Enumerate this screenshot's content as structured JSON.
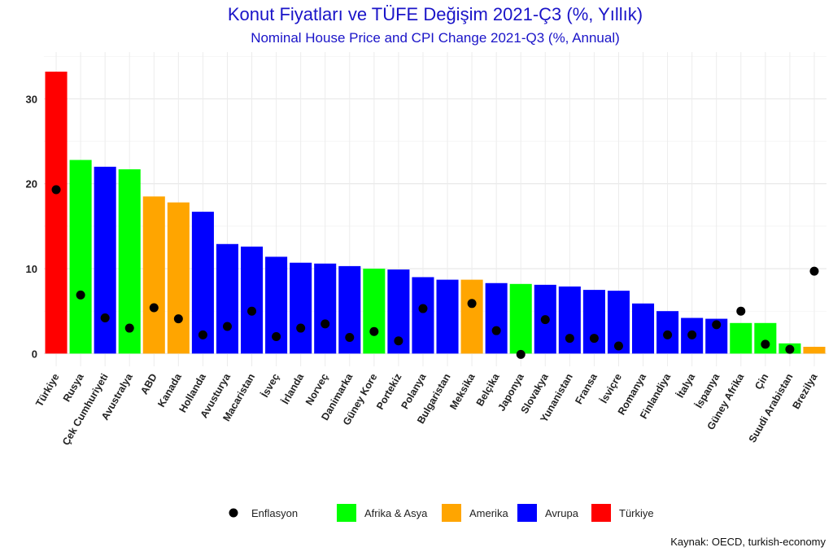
{
  "title": "Konut Fiyatları ve TÜFE Değişim 2021-Ç3 (%, Yıllık)",
  "subtitle": "Nominal House Price and CPI Change 2021-Q3 (%, Annual)",
  "source": "Kaynak: OECD, turkish-economy",
  "colors": {
    "Afrika & Asya": "#00ff00",
    "Amerika": "#ffa500",
    "Avrupa": "#0000ff",
    "Türkiye": "#ff0000",
    "inflation": "#000000"
  },
  "chart_data": {
    "type": "bar",
    "title": "Konut Fiyatları ve TÜFE Değişim 2021-Ç3 (%, Yıllık)",
    "xlabel": "",
    "ylabel": "",
    "ylim": [
      -1.5,
      35.5
    ],
    "yticks": [
      0,
      10,
      20,
      30
    ],
    "grid": true,
    "legend_position": "bottom",
    "categories": [
      "Türkiye",
      "Rusya",
      "Çek Cumhuriyeti",
      "Avustralya",
      "ABD",
      "Kanada",
      "Hollanda",
      "Avusturya",
      "Macaristan",
      "İsveç",
      "İrlanda",
      "Norveç",
      "Danimarka",
      "Güney Kore",
      "Portekiz",
      "Polanya",
      "Bulgaristan",
      "Meksika",
      "Belçika",
      "Japonya",
      "Slovakya",
      "Yunanistan",
      "Fransa",
      "İsviçre",
      "Romanya",
      "Finlandiya",
      "İtalya",
      "İspanya",
      "Güney Afrika",
      "Çin",
      "Suudi Arabistan",
      "Brezilya"
    ],
    "groups": [
      "Türkiye",
      "Afrika & Asya",
      "Avrupa",
      "Afrika & Asya",
      "Amerika",
      "Amerika",
      "Avrupa",
      "Avrupa",
      "Avrupa",
      "Avrupa",
      "Avrupa",
      "Avrupa",
      "Avrupa",
      "Afrika & Asya",
      "Avrupa",
      "Avrupa",
      "Avrupa",
      "Amerika",
      "Avrupa",
      "Afrika & Asya",
      "Avrupa",
      "Avrupa",
      "Avrupa",
      "Avrupa",
      "Avrupa",
      "Avrupa",
      "Avrupa",
      "Avrupa",
      "Afrika & Asya",
      "Afrika & Asya",
      "Afrika & Asya",
      "Amerika"
    ],
    "series": [
      {
        "name": "Konut Fiyatları",
        "type": "bar",
        "values": [
          33.2,
          22.8,
          22.0,
          21.7,
          18.5,
          17.8,
          16.7,
          12.9,
          12.6,
          11.4,
          10.7,
          10.6,
          10.3,
          10.0,
          9.9,
          9.0,
          8.7,
          8.7,
          8.3,
          8.2,
          8.1,
          7.9,
          7.5,
          7.4,
          5.9,
          5.0,
          4.2,
          4.1,
          3.6,
          3.6,
          1.2,
          0.8
        ]
      },
      {
        "name": "Enflasyon",
        "type": "scatter",
        "values": [
          19.3,
          6.9,
          4.2,
          3.0,
          5.4,
          4.1,
          2.2,
          3.2,
          5.0,
          2.0,
          3.0,
          3.5,
          1.9,
          2.6,
          1.5,
          5.3,
          null,
          5.9,
          2.7,
          -0.1,
          4.0,
          1.8,
          1.8,
          0.9,
          null,
          2.2,
          2.2,
          3.4,
          5.0,
          1.1,
          0.5,
          9.7
        ]
      }
    ]
  },
  "legend": [
    {
      "label": "Enflasyon",
      "kind": "dot",
      "color": "#000000"
    },
    {
      "label": "Afrika & Asya",
      "kind": "box",
      "color": "#00ff00"
    },
    {
      "label": "Amerika",
      "kind": "box",
      "color": "#ffa500"
    },
    {
      "label": "Avrupa",
      "kind": "box",
      "color": "#0000ff"
    },
    {
      "label": "Türkiye",
      "kind": "box",
      "color": "#ff0000"
    }
  ]
}
